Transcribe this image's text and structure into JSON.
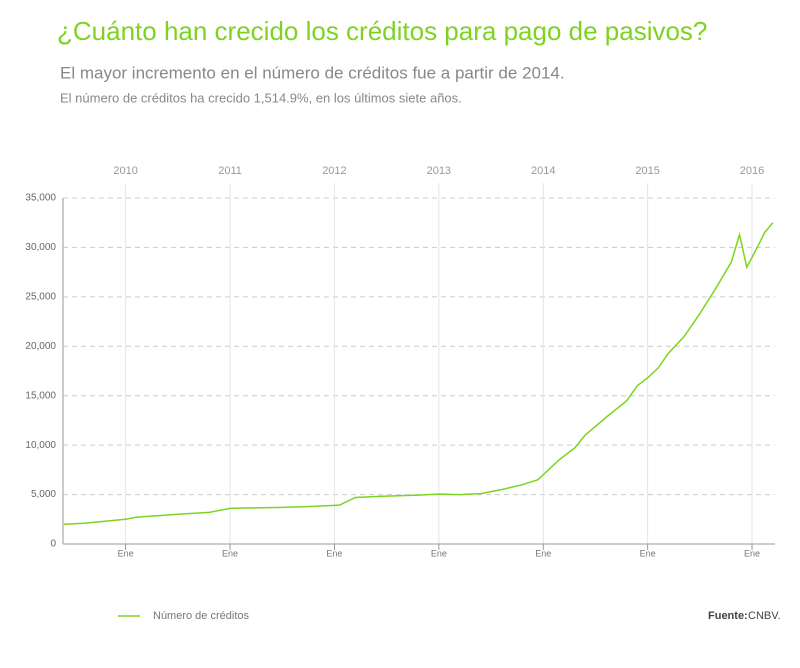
{
  "chart_data": {
    "type": "line",
    "title": "¿Cuánto han crecido los créditos para pago de pasivos?",
    "subtitle": "El mayor incremento en el número de créditos fue a partir de 2014.",
    "note": "El número de créditos ha crecido 1,514.9%, en los últimos siete años.",
    "x": [
      2009.41,
      2009.6,
      2010.0,
      2010.1,
      2010.5,
      2010.8,
      2011.0,
      2011.2,
      2011.5,
      2011.8,
      2012.0,
      2012.05,
      2012.2,
      2012.5,
      2012.8,
      2013.0,
      2013.2,
      2013.4,
      2013.6,
      2013.8,
      2013.95,
      2014.0,
      2014.15,
      2014.3,
      2014.4,
      2014.6,
      2014.8,
      2014.9,
      2015.0,
      2015.1,
      2015.2,
      2015.35,
      2015.5,
      2015.65,
      2015.8,
      2015.88,
      2015.95,
      2016.05,
      2016.12,
      2016.2
    ],
    "series": [
      {
        "name": "Número de créditos",
        "color": "#7ed321",
        "values": [
          2000,
          2100,
          2500,
          2700,
          3000,
          3200,
          3600,
          3650,
          3700,
          3800,
          3900,
          3950,
          4700,
          4850,
          4950,
          5050,
          5000,
          5100,
          5500,
          6000,
          6500,
          7000,
          8500,
          9700,
          11000,
          12800,
          14500,
          16000,
          16800,
          17800,
          19300,
          21000,
          23300,
          25800,
          28500,
          31300,
          28000,
          30000,
          31500,
          32500
        ]
      }
    ],
    "xlim": [
      2009.4,
      2016.22
    ],
    "xticks": [
      2010,
      2011,
      2012,
      2013,
      2014,
      2015,
      2016
    ],
    "xticks_bottom": [
      {
        "value": 2010,
        "label": "Ene"
      },
      {
        "value": 2011,
        "label": "Ene"
      },
      {
        "value": 2012,
        "label": "Ene"
      },
      {
        "value": 2013,
        "label": "Ene"
      },
      {
        "value": 2014,
        "label": "Ene"
      },
      {
        "value": 2015,
        "label": "Ene"
      },
      {
        "value": 2016,
        "label": "Ene"
      }
    ],
    "ylim": [
      0,
      35000
    ],
    "yticks": [
      0,
      {
        "value": 5000,
        "label": "5,000"
      },
      {
        "value": 10000,
        "label": "10,000"
      },
      {
        "value": 15000,
        "label": "15,000"
      },
      {
        "value": 20000,
        "label": "20,000"
      },
      {
        "value": 25000,
        "label": "25,000"
      },
      {
        "value": 30000,
        "label": "30,000"
      },
      {
        "value": 35000,
        "label": "35,000"
      }
    ],
    "grid": true,
    "legend": "bottom-left",
    "source_label": "Fuente:",
    "source": "CNBV."
  }
}
